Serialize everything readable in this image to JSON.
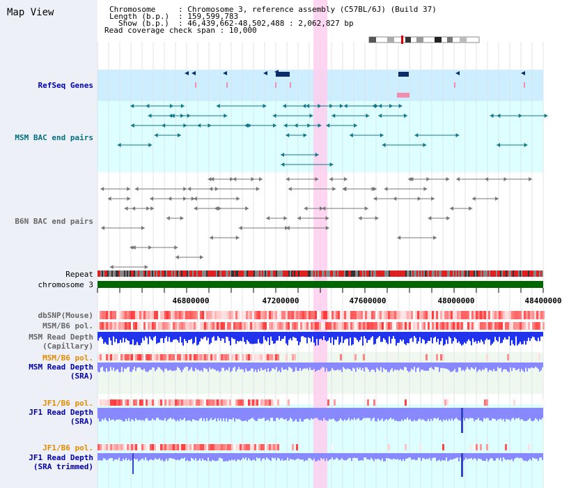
{
  "title": "Map View",
  "header": {
    "chromosome_label": "Chromosome",
    "chromosome_value": "Chromosome 3, reference assembly (C57BL/6J) (Build 37)",
    "length_label": "Length (b.p.)",
    "length_value": "159,599,783",
    "show_label": "Show (b.p.)",
    "show_value": "46,439,662-48,502,488 : 2,062,827 bp",
    "coverage_label": "Read coverage check span",
    "coverage_value": "10,000"
  },
  "tracks": {
    "refseq": "RefSeq Genes",
    "msm_bac": "MSM BAC end pairs",
    "b6n_bac": "B6N BAC end pairs",
    "repeat": "Repeat",
    "chromosome": "chromosome 3",
    "dbsnp": "dbSNP(Mouse)",
    "msm_b6_pol": "MSM/B6 pol.",
    "msm_depth_cap_1": "MSM Read Depth",
    "msm_depth_cap_2": "(Capillary)",
    "msm_b6_pol_2": "MSM/B6 pol.",
    "msm_depth_sra_1": "MSM Read Depth",
    "msm_depth_sra_2": "(SRA)",
    "jf1_b6_pol": "JF1/B6 pol.",
    "jf1_depth_sra_1": "JF1 Read Depth",
    "jf1_depth_sra_2": "(SRA)",
    "jf1_b6_pol_2": "JF1/B6 pol.",
    "jf1_depth_trim_1": "JF1 Read Depth",
    "jf1_depth_trim_2": "(SRA trimmed)"
  },
  "axis_ticks": [
    "46800000",
    "47200000",
    "47600000",
    "48000000",
    "48400000"
  ],
  "colors": {
    "refseq_bg": "#cceeff",
    "msm_bac_bg": "#ddffff",
    "highlight": "#ffccee",
    "chromosome": "#006600",
    "depth_blue": "#2233ee",
    "depth_light": "#8888ff"
  }
}
